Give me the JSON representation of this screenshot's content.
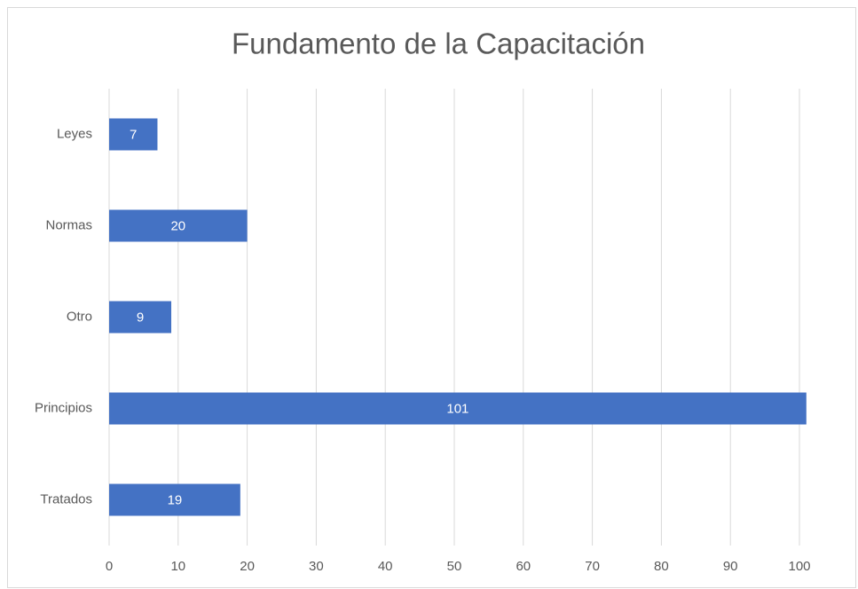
{
  "chart_data": {
    "type": "hbar",
    "title": "Fundamento de la Capacitación",
    "categories": [
      "Leyes",
      "Normas",
      "Otro",
      "Principios",
      "Tratados"
    ],
    "values": [
      7,
      20,
      9,
      101,
      19
    ],
    "color": "#4472c4",
    "xlim": [
      0,
      101
    ],
    "xticks": [
      0,
      10,
      20,
      30,
      40,
      50,
      60,
      70,
      80,
      90,
      100
    ],
    "grid": true
  }
}
